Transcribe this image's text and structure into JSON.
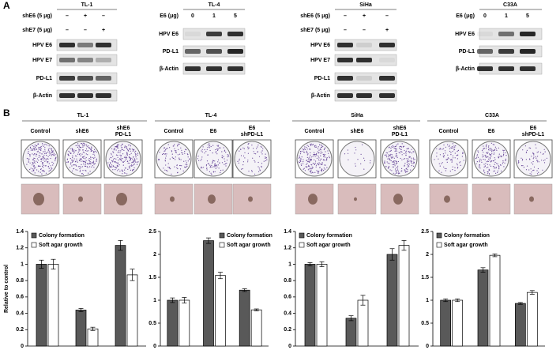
{
  "panel_a": {
    "label": "A",
    "blots": [
      {
        "cell": "TL-1",
        "conditions": [
          {
            "name": "shE6 (5 μg)",
            "marks": [
              "–",
              "+",
              "–"
            ]
          },
          {
            "name": "shE7 (5 μg)",
            "marks": [
              "–",
              "–",
              "+"
            ]
          }
        ],
        "bands": [
          "HPV E6",
          "HPV E7",
          "PD-L1",
          "β-Actin"
        ]
      },
      {
        "cell": "TL-4",
        "conditions": [
          {
            "name": "E6 (μg)",
            "marks": [
              "0",
              "1",
              "5"
            ]
          }
        ],
        "bands": [
          "HPV E6",
          "PD-L1",
          "β-Actin"
        ]
      },
      {
        "cell": "SiHa",
        "conditions": [
          {
            "name": "shE6 (5 μg)",
            "marks": [
              "–",
              "+",
              "–"
            ]
          },
          {
            "name": "shE7 (5 μg)",
            "marks": [
              "–",
              "–",
              "+"
            ]
          }
        ],
        "bands": [
          "HPV E6",
          "HPV E7",
          "PD-L1",
          "β-Actin"
        ]
      },
      {
        "cell": "C33A",
        "conditions": [
          {
            "name": "E6 (μg)",
            "marks": [
              "0",
              "1",
              "5"
            ]
          }
        ],
        "bands": [
          "HPV E6",
          "PD-L1",
          "β-Actin"
        ]
      }
    ]
  },
  "panel_b": {
    "label": "B",
    "groups": [
      {
        "cell": "TL-1",
        "conditions": [
          [
            "Control"
          ],
          [
            "shE6"
          ],
          [
            "shE6",
            "PD-L1"
          ]
        ]
      },
      {
        "cell": "TL-4",
        "conditions": [
          [
            "Control"
          ],
          [
            "E6"
          ],
          [
            "E6",
            "shPD-L1"
          ]
        ]
      },
      {
        "cell": "SiHa",
        "conditions": [
          [
            "Control"
          ],
          [
            "shE6"
          ],
          [
            "shE6",
            "PD-L1"
          ]
        ]
      },
      {
        "cell": "C33A",
        "conditions": [
          [
            "Control"
          ],
          [
            "E6"
          ],
          [
            "E6",
            "shPD-L1"
          ]
        ]
      }
    ]
  },
  "chart_data": [
    {
      "type": "bar",
      "ylabel": "Relative to control",
      "categories": [
        null,
        null,
        null
      ],
      "legend": "upper left",
      "series": [
        {
          "name": "Colony formation",
          "color": "#595959",
          "values": [
            1.0,
            0.44,
            1.23
          ],
          "errors": [
            0.05,
            0.02,
            0.06
          ]
        },
        {
          "name": "Soft agar growth",
          "color": "#ffffff",
          "values": [
            1.0,
            0.21,
            0.87
          ],
          "errors": [
            0.06,
            0.02,
            0.07
          ]
        }
      ],
      "ylim": [
        0,
        1.4
      ],
      "yticks": [
        0,
        0.2,
        0.4,
        0.6,
        0.8,
        1,
        1.2,
        1.4
      ]
    },
    {
      "type": "bar",
      "categories": [
        null,
        null,
        null
      ],
      "legend": "upper right",
      "series": [
        {
          "name": "Colony formation",
          "color": "#595959",
          "values": [
            1.0,
            2.3,
            1.22
          ],
          "errors": [
            0.05,
            0.06,
            0.03
          ]
        },
        {
          "name": "Soft agar growth",
          "color": "#ffffff",
          "values": [
            1.0,
            1.54,
            0.79
          ],
          "errors": [
            0.06,
            0.07,
            0.02
          ]
        }
      ],
      "ylim": [
        0,
        2.5
      ],
      "yticks": [
        0,
        0.5,
        1,
        1.5,
        2,
        2.5
      ]
    },
    {
      "type": "bar",
      "categories": [
        null,
        null,
        null
      ],
      "legend": "upper left",
      "series": [
        {
          "name": "Colony formation",
          "color": "#595959",
          "values": [
            1.0,
            0.34,
            1.12
          ],
          "errors": [
            0.02,
            0.03,
            0.07
          ]
        },
        {
          "name": "Soft agar growth",
          "color": "#ffffff",
          "values": [
            1.0,
            0.56,
            1.23
          ],
          "errors": [
            0.03,
            0.06,
            0.06
          ]
        }
      ],
      "ylim": [
        0,
        1.4
      ],
      "yticks": [
        0,
        0.2,
        0.4,
        0.6,
        0.8,
        1,
        1.2,
        1.4
      ]
    },
    {
      "type": "bar",
      "categories": [
        null,
        null,
        null
      ],
      "legend": "upper left",
      "series": [
        {
          "name": "Colony formation",
          "color": "#595959",
          "values": [
            1.0,
            1.66,
            0.93
          ],
          "errors": [
            0.03,
            0.05,
            0.02
          ]
        },
        {
          "name": "Soft agar growth",
          "color": "#ffffff",
          "values": [
            1.0,
            1.98,
            1.17
          ],
          "errors": [
            0.03,
            0.03,
            0.04
          ]
        }
      ],
      "ylim": [
        0,
        2.5
      ],
      "yticks": [
        0,
        0.5,
        1,
        1.5,
        2,
        2.5
      ]
    }
  ]
}
